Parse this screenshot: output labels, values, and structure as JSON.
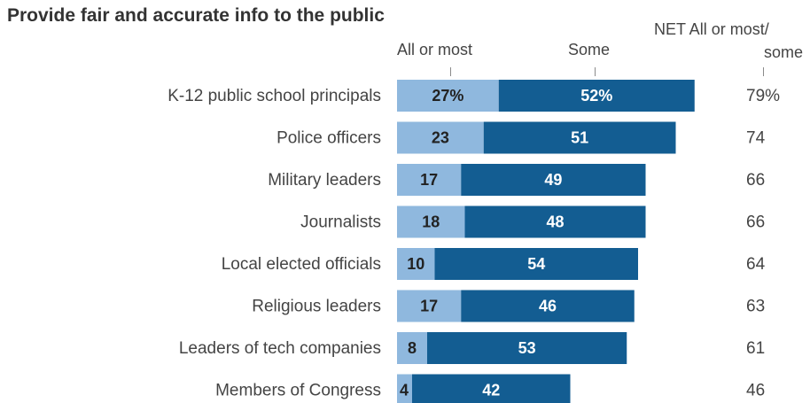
{
  "chart_data": {
    "type": "bar",
    "orientation": "horizontal",
    "stacked": true,
    "title": "Provide fair and accurate info to the public",
    "categories": [
      "K-12 public school principals",
      "Police officers",
      "Military leaders",
      "Journalists",
      "Local elected officials",
      "Religious leaders",
      "Leaders of tech companies",
      "Members of Congress"
    ],
    "series": [
      {
        "name": "All or most",
        "values": [
          27,
          23,
          17,
          18,
          10,
          17,
          8,
          4
        ],
        "color": "#8fb8de",
        "labels": [
          "27%",
          "23",
          "17",
          "18",
          "10",
          "17",
          "8",
          "4"
        ]
      },
      {
        "name": "Some",
        "values": [
          52,
          51,
          49,
          48,
          54,
          46,
          53,
          42
        ],
        "color": "#135d92",
        "labels": [
          "52%",
          "51",
          "49",
          "48",
          "54",
          "46",
          "53",
          "42"
        ]
      }
    ],
    "net": {
      "name": "NET All or most/ some",
      "values": [
        79,
        74,
        66,
        66,
        64,
        63,
        61,
        46
      ],
      "labels": [
        "79%",
        "74",
        "66",
        "66",
        "64",
        "63",
        "61",
        "46"
      ]
    },
    "grid": false,
    "legend": "top"
  },
  "headers": {
    "all_or_most": "All or most",
    "some": "Some",
    "net_line1": "NET All or most/",
    "net_line2": "some"
  }
}
